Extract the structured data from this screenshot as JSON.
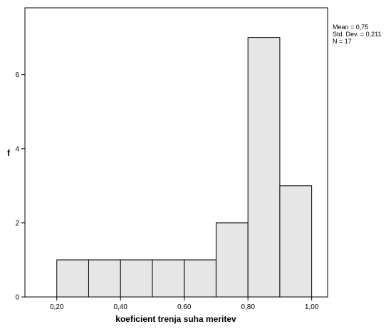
{
  "chart_data": {
    "type": "bar",
    "subtype": "histogram",
    "bins": [
      {
        "from": 0.2,
        "to": 0.3,
        "count": 1
      },
      {
        "from": 0.3,
        "to": 0.4,
        "count": 1
      },
      {
        "from": 0.4,
        "to": 0.5,
        "count": 1
      },
      {
        "from": 0.5,
        "to": 0.6,
        "count": 1
      },
      {
        "from": 0.6,
        "to": 0.7,
        "count": 1
      },
      {
        "from": 0.7,
        "to": 0.8,
        "count": 2
      },
      {
        "from": 0.8,
        "to": 0.9,
        "count": 7
      },
      {
        "from": 0.9,
        "to": 1.0,
        "count": 3
      }
    ],
    "xlabel": "koeficient trenja suha meritev",
    "ylabel": "f",
    "xlim": [
      0.1,
      1.05
    ],
    "ylim": [
      0,
      7.8
    ],
    "xticks": [
      0.2,
      0.4,
      0.6,
      0.8,
      1.0
    ],
    "xtick_labels": [
      "0,20",
      "0,40",
      "0,60",
      "0,80",
      "1,00"
    ],
    "yticks": [
      0,
      2,
      4,
      6
    ],
    "ytick_labels": [
      "0",
      "2",
      "4",
      "6"
    ],
    "grid": false,
    "bar_color": "#e6e6e6",
    "edge_color": "#000000",
    "stats": {
      "mean": "Mean = 0,75",
      "std": "Std. Dev. = 0,211",
      "n": "N = 17"
    }
  }
}
